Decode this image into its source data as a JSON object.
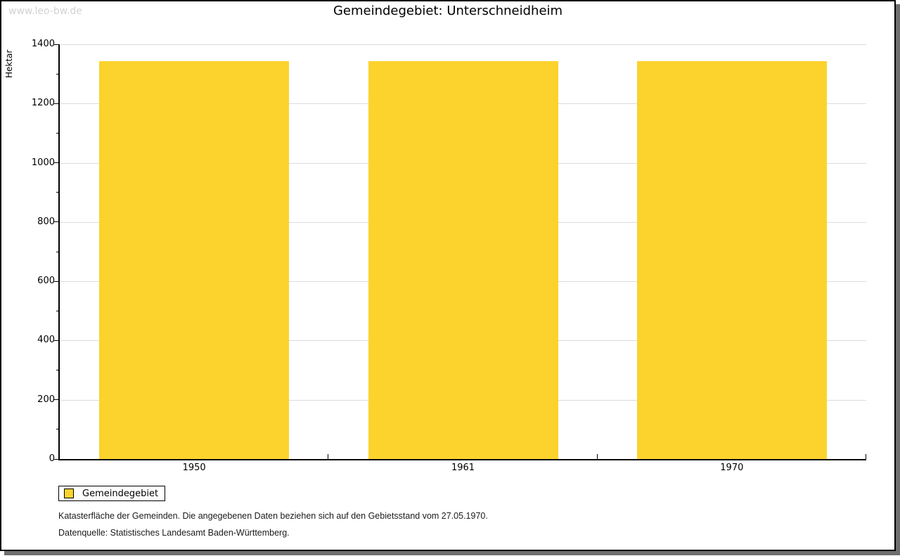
{
  "watermark": "www.leo-bw.de",
  "title": "Gemeindegebiet: Unterschneidheim",
  "legend": {
    "label": "Gemeindegebiet"
  },
  "footnotes": {
    "line1": "Katasterfläche der Gemeinden. Die angegebenen Daten beziehen sich auf den Gebietsstand vom 27.05.1970.",
    "line2": "Datenquelle: Statistisches Landesamt Baden-Württemberg."
  },
  "colors": {
    "bar": "#fcd32c",
    "gridline": "#dcdcdc",
    "axis": "#000000",
    "shadow": "#6e6e6e",
    "watermark": "#d3d3d3"
  },
  "chart_data": {
    "type": "bar",
    "title": "Gemeindegebiet: Unterschneidheim",
    "xlabel": "",
    "ylabel": "Hektar",
    "categories": [
      "1950",
      "1961",
      "1970"
    ],
    "series": [
      {
        "name": "Gemeindegebiet",
        "color": "#fcd32c",
        "values": [
          1342,
          1342,
          1342
        ]
      }
    ],
    "ylim": [
      0,
      1400
    ],
    "ytick_major_step": 200,
    "ytick_minor_step": 100,
    "grid": true,
    "legend_position": "bottom-left"
  }
}
